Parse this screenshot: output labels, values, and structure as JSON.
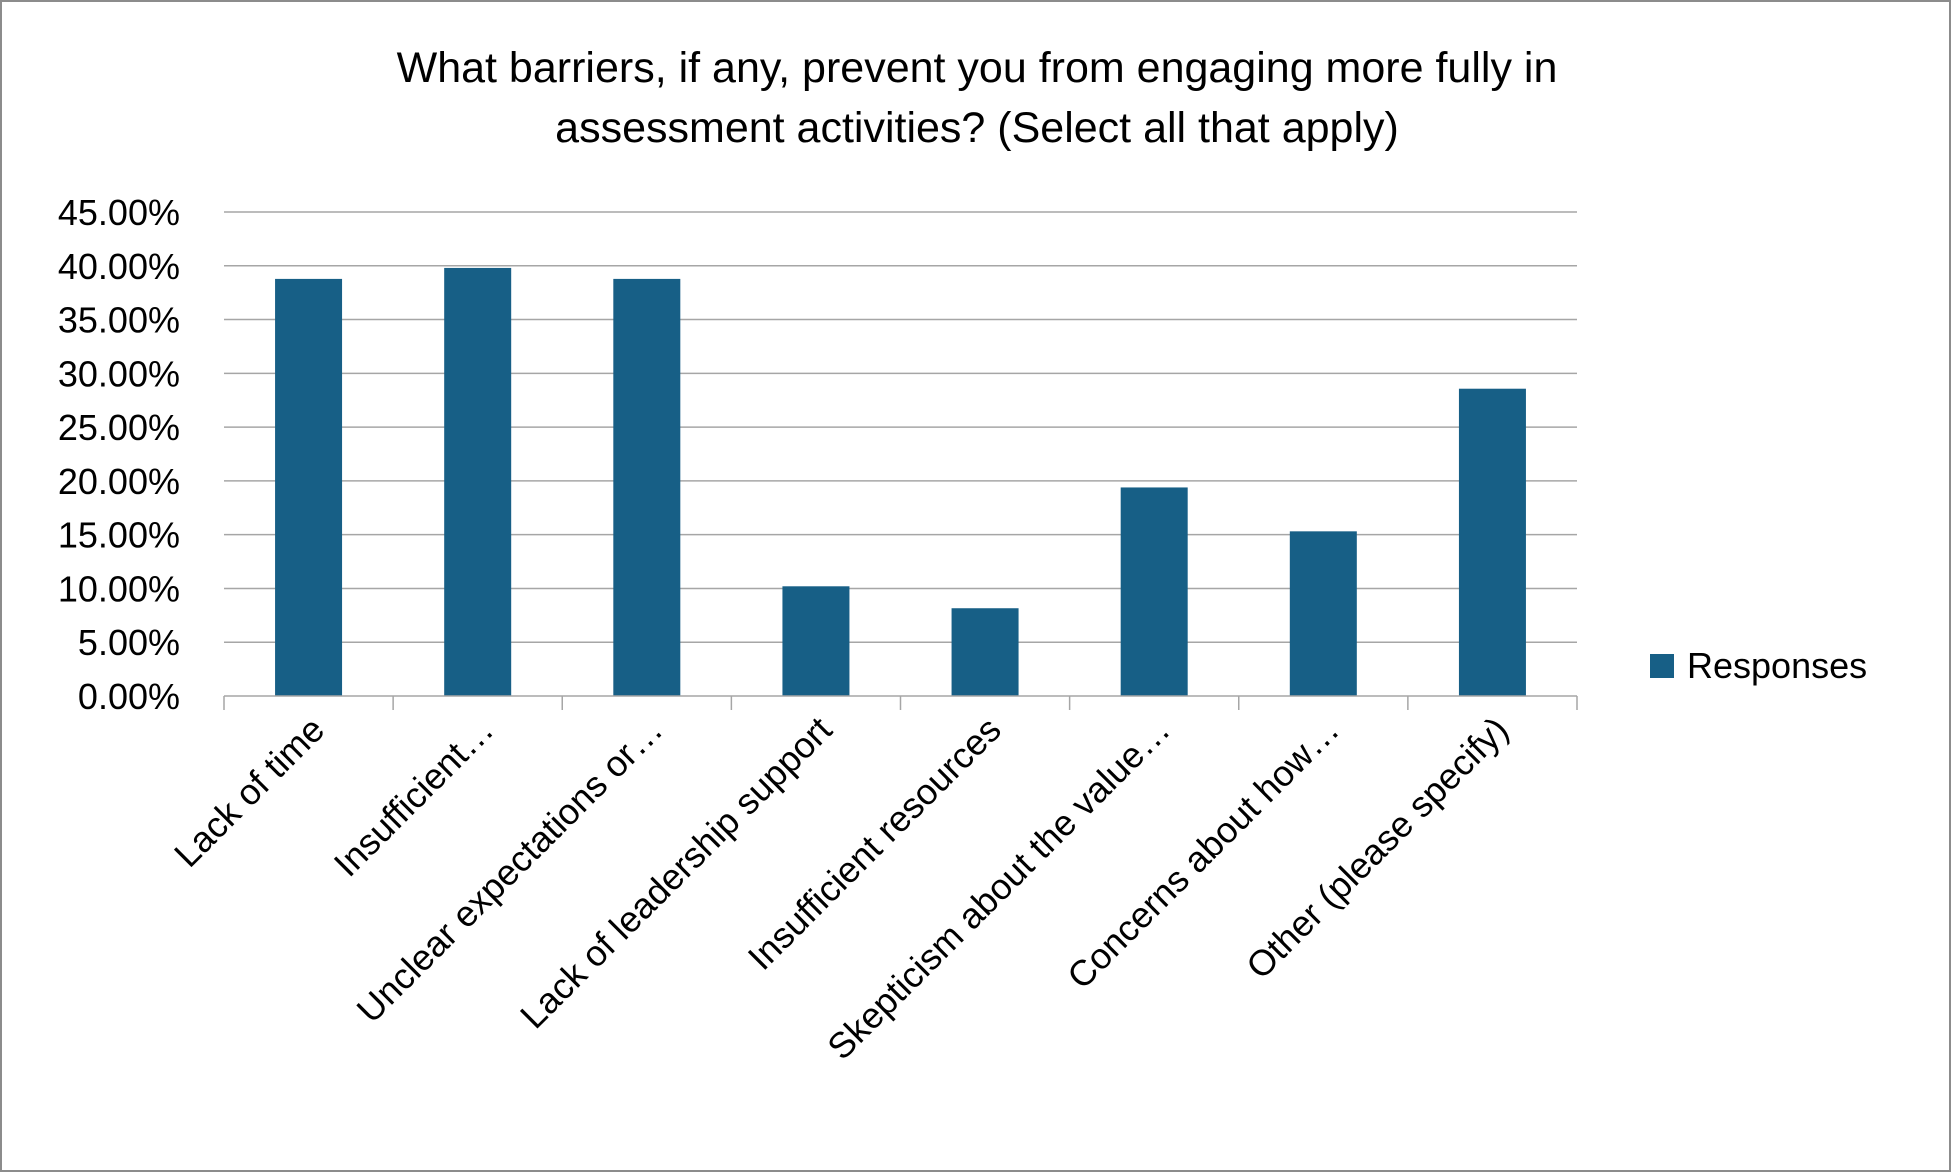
{
  "chart_data": {
    "type": "bar",
    "title_lines": [
      "What barriers, if any, prevent you from engaging more fully in",
      "assessment activities? (Select all that apply)"
    ],
    "categories": [
      "Lack of time",
      "Insufficient…",
      "Unclear expectations or…",
      "Lack of leadership support",
      "Insufficient resources",
      "Skepticism about the value…",
      "Concerns about how…",
      "Other (please specify)"
    ],
    "series": [
      {
        "name": "Responses",
        "color": "#175f86",
        "values": [
          0.3878,
          0.398,
          0.3878,
          0.102,
          0.0816,
          0.1939,
          0.1531,
          0.2857
        ]
      }
    ],
    "y_ticks": [
      "0.00%",
      "5.00%",
      "10.00%",
      "15.00%",
      "20.00%",
      "25.00%",
      "30.00%",
      "35.00%",
      "40.00%",
      "45.00%"
    ],
    "ylim": [
      0,
      0.45
    ],
    "grid": true,
    "legend_position": "right"
  }
}
